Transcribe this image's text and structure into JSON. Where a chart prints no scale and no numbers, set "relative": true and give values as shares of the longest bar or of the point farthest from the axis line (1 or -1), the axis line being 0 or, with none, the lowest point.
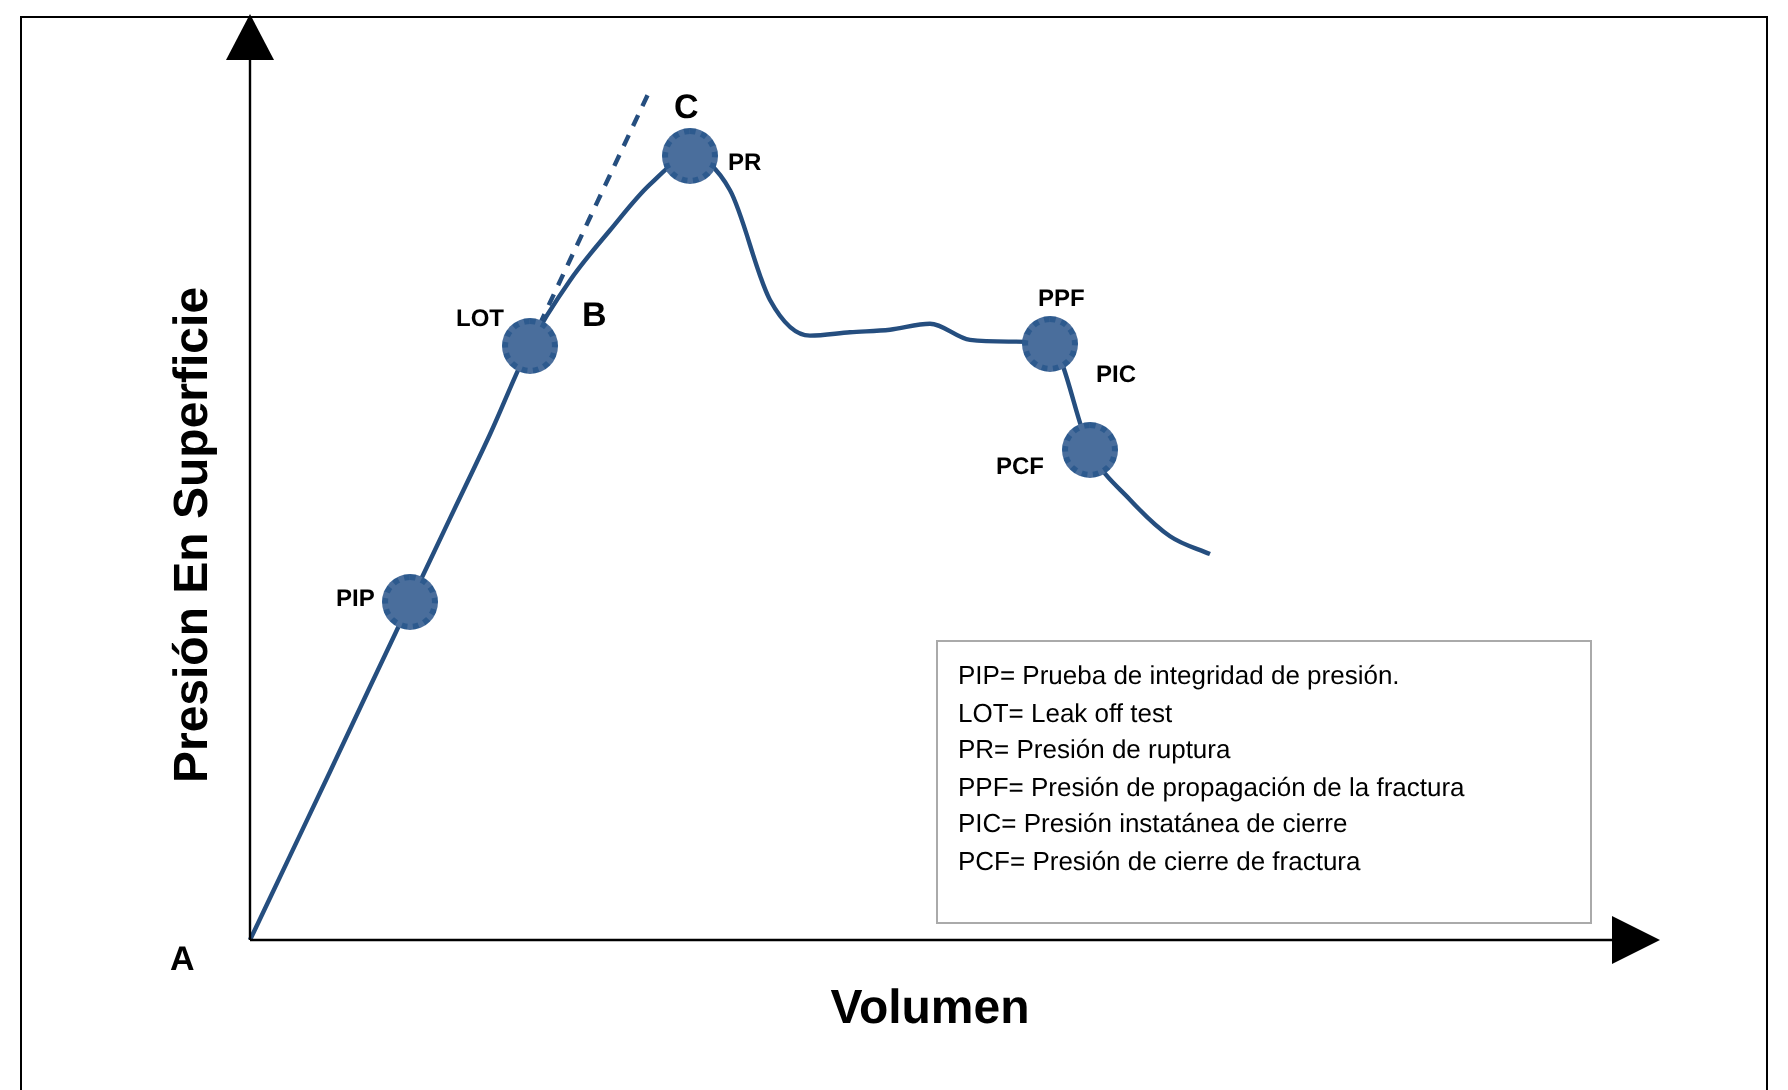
{
  "chart_data": {
    "type": "line",
    "relative": true,
    "xlabel": "Volumen",
    "ylabel": "Presión En Superficie",
    "categories": [
      null,
      null,
      null,
      null,
      null,
      null,
      null,
      null,
      null,
      null,
      null,
      null,
      null,
      null,
      null,
      null,
      null,
      null,
      null,
      null,
      null,
      null,
      null,
      null,
      null,
      null,
      null,
      null,
      null,
      null,
      null,
      null,
      null,
      null,
      null
    ],
    "series": [
      {
        "color": "#254e7f",
        "line_style": "solid",
        "values": [
          0,
          0.099,
          0.198,
          0.298,
          0.397,
          0.496,
          0.595,
          0.7,
          0.776,
          0.835,
          0.889,
          0.922,
          0.882,
          0.753,
          0.711,
          0.715,
          0.718,
          0.725,
          0.706,
          0.704,
          0.701,
          0.576,
          0.518,
          0.475,
          0.454,
          null,
          null,
          null,
          null,
          null,
          null,
          null,
          null,
          null,
          null
        ]
      },
      {
        "color": "#254e7f",
        "line_style": "dashed",
        "values": [
          null,
          null,
          null,
          null,
          null,
          null,
          null,
          0.7,
          0.8,
          0.9,
          1,
          null,
          null,
          null,
          null,
          null,
          null,
          null,
          null,
          null,
          null,
          null,
          null,
          null,
          null,
          null,
          null,
          null,
          null,
          null,
          null,
          null,
          null,
          null,
          null
        ]
      }
    ],
    "annotations": [
      "A",
      "B",
      "C",
      "PIP",
      "LOT",
      "PR",
      "PPF",
      "PIC",
      "PCF",
      "PIP= Prueba de integridad de presión.",
      "LOT= Leak off test",
      "PR= Presión de ruptura",
      "PPF= Presión de propagación de la fractura",
      "PIC= Presión instatánea de cierre",
      "PCF= Presión de cierre de fractura"
    ],
    "legend": false
  }
}
